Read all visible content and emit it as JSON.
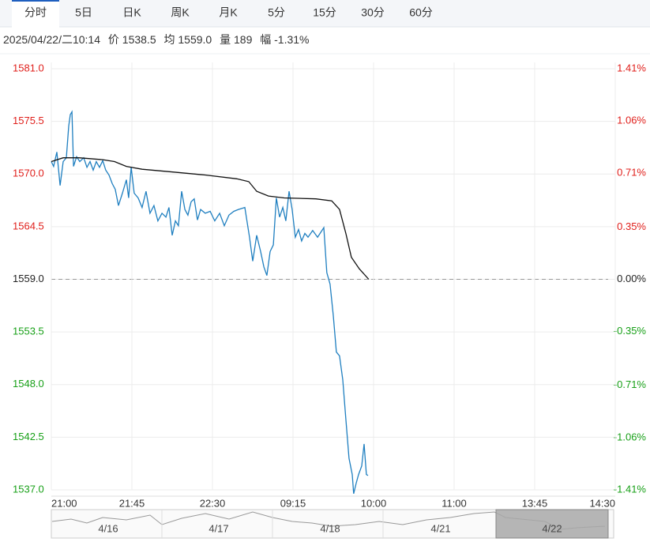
{
  "tabs": [
    "分时",
    "5日",
    "日K",
    "周K",
    "月K",
    "5分",
    "15分",
    "30分",
    "60分"
  ],
  "info": [
    "2025/04/22/二10:14",
    "价 1538.5",
    "均 1559.0",
    "量 189",
    "幅 -1.31%"
  ],
  "chart_data": {
    "type": "line",
    "xlim": [
      0,
      315
    ],
    "xticks": [
      {
        "value": 0,
        "label": "21:00"
      },
      {
        "value": 45,
        "label": "21:45"
      },
      {
        "value": 90,
        "label": "22:30"
      },
      {
        "value": 135,
        "label": "09:15"
      },
      {
        "value": 180,
        "label": "10:00"
      },
      {
        "value": 225,
        "label": "11:00"
      },
      {
        "value": 270,
        "label": "13:45"
      },
      {
        "value": 315,
        "label": "14:30"
      }
    ],
    "ylim": [
      1537.0,
      1581.0
    ],
    "yticks": [
      {
        "value": 1581.0,
        "label": "1581.0"
      },
      {
        "value": 1575.5,
        "label": "1575.5"
      },
      {
        "value": 1570.0,
        "label": "1570.0"
      },
      {
        "value": 1564.5,
        "label": "1564.5"
      },
      {
        "value": 1559.0,
        "label": "1559.0"
      },
      {
        "value": 1553.5,
        "label": "1553.5"
      },
      {
        "value": 1548.0,
        "label": "1548.0"
      },
      {
        "value": 1542.5,
        "label": "1542.5"
      },
      {
        "value": 1537.0,
        "label": "1537.0"
      }
    ],
    "y2lim": [
      -1.41,
      1.41
    ],
    "y2ticks": [
      {
        "value": 1.41,
        "label": "1.41%"
      },
      {
        "value": 1.06,
        "label": "1.06%"
      },
      {
        "value": 0.71,
        "label": "0.71%"
      },
      {
        "value": 0.35,
        "label": "0.35%"
      },
      {
        "value": 0,
        "label": "0.00%"
      },
      {
        "value": -0.35,
        "label": "-0.35%"
      },
      {
        "value": -0.71,
        "label": "-0.71%"
      },
      {
        "value": -1.06,
        "label": "-1.06%"
      },
      {
        "value": -1.41,
        "label": "-1.41%"
      }
    ],
    "grid": true,
    "up_color": "#e0201c",
    "down_color": "#18a018",
    "flat_color": "#222222",
    "series": [
      {
        "color": "#1f7fc0",
        "x": [
          0,
          1.3,
          3.1,
          4.9,
          6.6,
          8.4,
          9.7,
          10.6,
          11.5,
          12.4,
          14.1,
          15.9,
          18.1,
          19.9,
          21.6,
          23.4,
          25.1,
          26.9,
          28.7,
          30.4,
          32.2,
          34.0,
          35.7,
          37.5,
          39.7,
          41.9,
          43.2,
          44.6,
          46.3,
          48.5,
          50.7,
          52.9,
          55.1,
          57.3,
          59.5,
          61.8,
          64.0,
          65.7,
          67.5,
          69.3,
          71.0,
          72.8,
          74.6,
          76.3,
          78.1,
          79.8,
          81.6,
          83.4,
          86.0,
          88.7,
          91.3,
          94.0,
          96.6,
          99.2,
          101.9,
          104.5,
          108.1,
          110.7,
          112.5,
          114.7,
          116.9,
          118.7,
          120.4,
          122.2,
          124.0,
          125.7,
          127.5,
          129.3,
          131.0,
          132.8,
          134.5,
          136.3,
          138.1,
          139.8,
          141.6,
          143.4,
          146.0,
          148.7,
          152.2,
          153.9,
          155.7,
          157.5,
          159.2,
          161.0,
          162.8,
          164.5,
          166.3,
          168.1,
          168.9,
          170.3,
          171.6,
          173.4,
          174.7,
          176.0,
          176.9
        ],
        "values": [
          1571.3,
          1570.8,
          1572.3,
          1568.8,
          1571.3,
          1571.7,
          1575.0,
          1576.2,
          1576.5,
          1570.8,
          1571.8,
          1571.3,
          1571.7,
          1570.7,
          1571.3,
          1570.4,
          1571.3,
          1570.7,
          1571.4,
          1570.4,
          1569.9,
          1569.0,
          1568.4,
          1566.7,
          1568.0,
          1569.4,
          1567.5,
          1570.7,
          1568.0,
          1567.5,
          1566.5,
          1568.2,
          1565.9,
          1566.7,
          1565.1,
          1565.9,
          1565.5,
          1566.5,
          1563.6,
          1565.1,
          1564.6,
          1568.2,
          1566.3,
          1565.7,
          1567.1,
          1567.4,
          1565.2,
          1566.3,
          1565.9,
          1566.1,
          1565.1,
          1565.9,
          1564.6,
          1565.7,
          1566.1,
          1566.3,
          1566.5,
          1563.4,
          1560.9,
          1563.6,
          1561.9,
          1560.3,
          1559.4,
          1561.9,
          1562.6,
          1567.5,
          1565.5,
          1566.5,
          1565.1,
          1568.2,
          1566.3,
          1563.4,
          1564.2,
          1563.0,
          1563.8,
          1563.4,
          1564.1,
          1563.4,
          1564.4,
          1559.7,
          1558.5,
          1555.2,
          1551.4,
          1551.0,
          1548.5,
          1544.4,
          1540.3,
          1538.6,
          1536.6,
          1537.7,
          1538.6,
          1539.5,
          1541.8,
          1538.6,
          1538.5
        ]
      },
      {
        "color": "#111111",
        "x": [
          0,
          6.6,
          15.4,
          28.7,
          35.3,
          41.9,
          50.7,
          68.4,
          86.0,
          103.6,
          110.3,
          114.7,
          121.3,
          130.1,
          147.8,
          156.6,
          161.0,
          164.5,
          167.6,
          172.0,
          177.3
        ],
        "values": [
          1571.3,
          1571.7,
          1571.7,
          1571.5,
          1571.3,
          1570.8,
          1570.5,
          1570.2,
          1569.9,
          1569.5,
          1569.2,
          1568.2,
          1567.7,
          1567.5,
          1567.4,
          1567.2,
          1566.3,
          1563.8,
          1561.3,
          1560.1,
          1559.0
        ]
      }
    ]
  },
  "navigator": [
    "4/16",
    "4/17",
    "4/18",
    "4/21",
    "4/22"
  ]
}
